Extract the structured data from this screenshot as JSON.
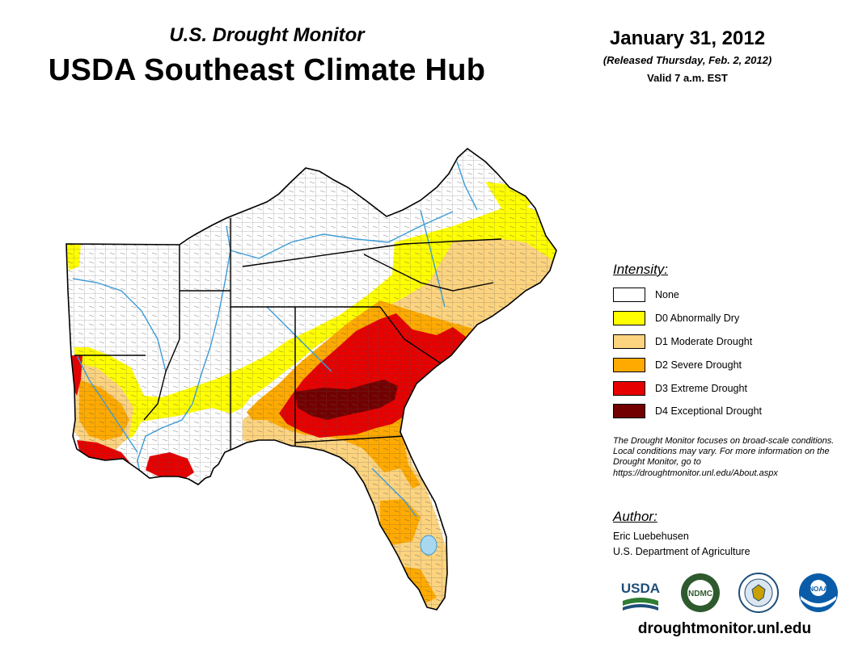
{
  "header": {
    "subtitle": "U.S. Drought Monitor",
    "title": "USDA Southeast Climate Hub",
    "date": "January 31, 2012",
    "released": "(Released Thursday, Feb. 2, 2012)",
    "valid": "Valid 7 a.m. EST"
  },
  "legend": {
    "title": "Intensity:",
    "items": [
      {
        "label": "None",
        "color": "#ffffff"
      },
      {
        "label": "D0 Abnormally Dry",
        "color": "#ffff00"
      },
      {
        "label": "D1 Moderate Drought",
        "color": "#fcd37f"
      },
      {
        "label": "D2 Severe Drought",
        "color": "#ffaa00"
      },
      {
        "label": "D3 Extreme Drought",
        "color": "#e60000"
      },
      {
        "label": "D4 Exceptional Drought",
        "color": "#730000"
      }
    ]
  },
  "note": "The Drought Monitor focuses on broad-scale conditions. Local conditions may vary. For more information on the Drought Monitor, go to https://droughtmonitor.unl.edu/About.aspx",
  "author": {
    "title": "Author:",
    "name": "Eric Luebehusen",
    "org": "U.S. Department of Agriculture"
  },
  "logos": {
    "usda": "USDA",
    "ndmc": "NDMC",
    "noaa": "NOAA"
  },
  "website": "droughtmonitor.unl.edu"
}
